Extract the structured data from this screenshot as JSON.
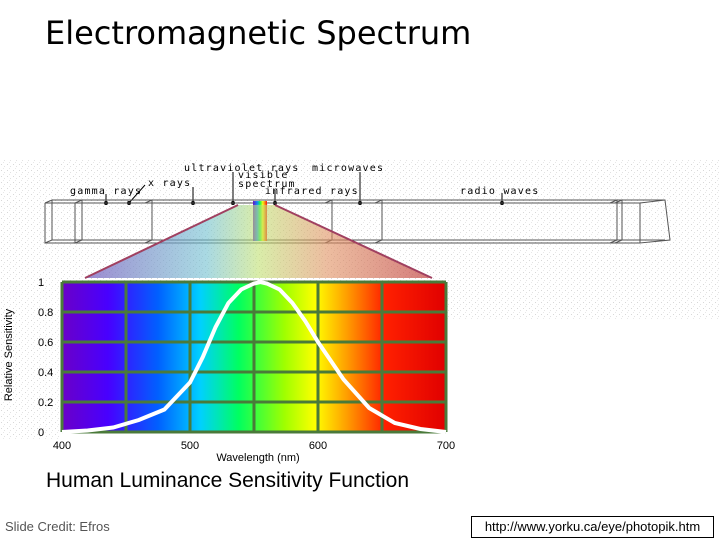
{
  "slide": {
    "title": "Electromagnetic Spectrum",
    "caption": "Human Luminance Sensitivity Function",
    "credit": "Slide Credit: Efros",
    "url": "http://www.yorku.ca/eye/photopik.htm"
  },
  "em_bands": [
    {
      "key": "ultraviolet",
      "label": "ultraviolet rays"
    },
    {
      "key": "microwaves",
      "label": "microwaves"
    },
    {
      "key": "visible",
      "label": "visible\nspectrum"
    },
    {
      "key": "xrays",
      "label": "x rays"
    },
    {
      "key": "gamma",
      "label": "gamma rays"
    },
    {
      "key": "infrared",
      "label": "infrared rays"
    },
    {
      "key": "radio",
      "label": "radio waves"
    }
  ],
  "chart_data": {
    "type": "line",
    "xlabel": "Wavelength (nm)",
    "ylabel": "Relative Sensitivity",
    "xlim": [
      400,
      700
    ],
    "ylim": [
      0,
      1
    ],
    "x_ticks": [
      400,
      500,
      600,
      700
    ],
    "y_ticks": [
      0,
      0.2,
      0.4,
      0.6,
      0.8,
      1
    ],
    "y_tick_labels": [
      "0",
      "0.2",
      "0.4",
      "0.6",
      "0.8",
      "1"
    ],
    "grid": true,
    "background": "visible-spectrum-gradient",
    "curve_color": "#ffffff",
    "series": [
      {
        "x": [
          400,
          420,
          440,
          460,
          480,
          500,
          510,
          520,
          530,
          540,
          550,
          555,
          560,
          570,
          580,
          590,
          600,
          620,
          640,
          660,
          680,
          700
        ],
        "values": [
          0.0,
          0.01,
          0.03,
          0.08,
          0.15,
          0.33,
          0.5,
          0.7,
          0.86,
          0.95,
          0.99,
          1.0,
          0.99,
          0.95,
          0.86,
          0.74,
          0.6,
          0.35,
          0.16,
          0.06,
          0.02,
          0.0
        ]
      }
    ]
  }
}
